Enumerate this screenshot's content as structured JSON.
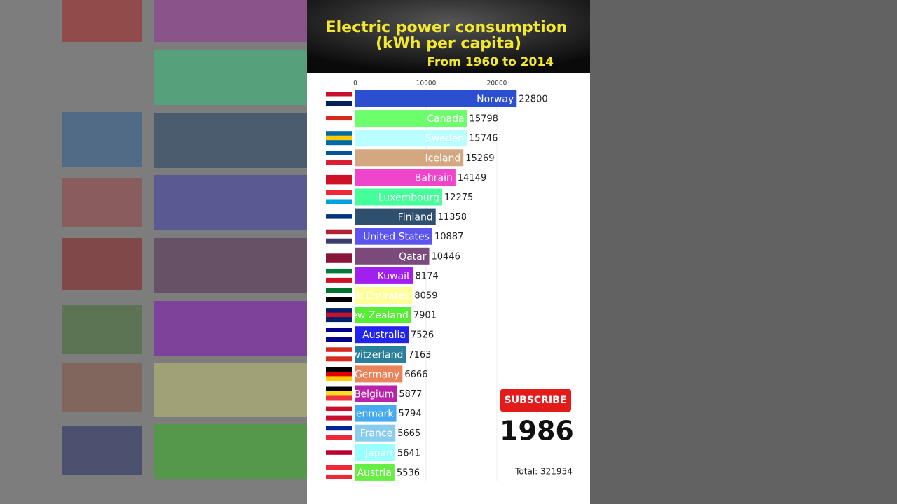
{
  "chart_data": {
    "type": "bar",
    "title": [
      "Electric power consumption",
      "(kWh per capita)"
    ],
    "subtitle": "From 1960 to 2014",
    "categories": [
      "Norway",
      "Canada",
      "Sweden",
      "Iceland",
      "Bahrain",
      "Luxembourg",
      "Finland",
      "United States",
      "Qatar",
      "Kuwait",
      "United Arab Emirates",
      "New Zealand",
      "Australia",
      "Switzerland",
      "Germany",
      "Belgium",
      "Denmark",
      "France",
      "Japan",
      "Austria"
    ],
    "values": [
      22800,
      15798,
      15746,
      15269,
      14149,
      12275,
      11358,
      10887,
      10446,
      8174,
      8059,
      7901,
      7526,
      7163,
      6666,
      5877,
      5794,
      5665,
      5641,
      5536
    ],
    "colors": [
      "#2b4fcf",
      "#6cff6c",
      "#b9ffff",
      "#d3a77f",
      "#ee45cc",
      "#45ff9a",
      "#2e4f6e",
      "#5b55ee",
      "#7b4a7b",
      "#a120f0",
      "#ffff9a",
      "#56ee34",
      "#2323ee",
      "#2a7f9a",
      "#e8835a",
      "#bb22aa",
      "#45aaee",
      "#89cdee",
      "#9affff",
      "#67ee45"
    ],
    "xlim": [
      0,
      30000
    ],
    "xticks": [
      0,
      10000,
      20000
    ],
    "grid": true,
    "year": "1986",
    "total": "Total: 321954",
    "button": "SUBSCRIBE"
  }
}
